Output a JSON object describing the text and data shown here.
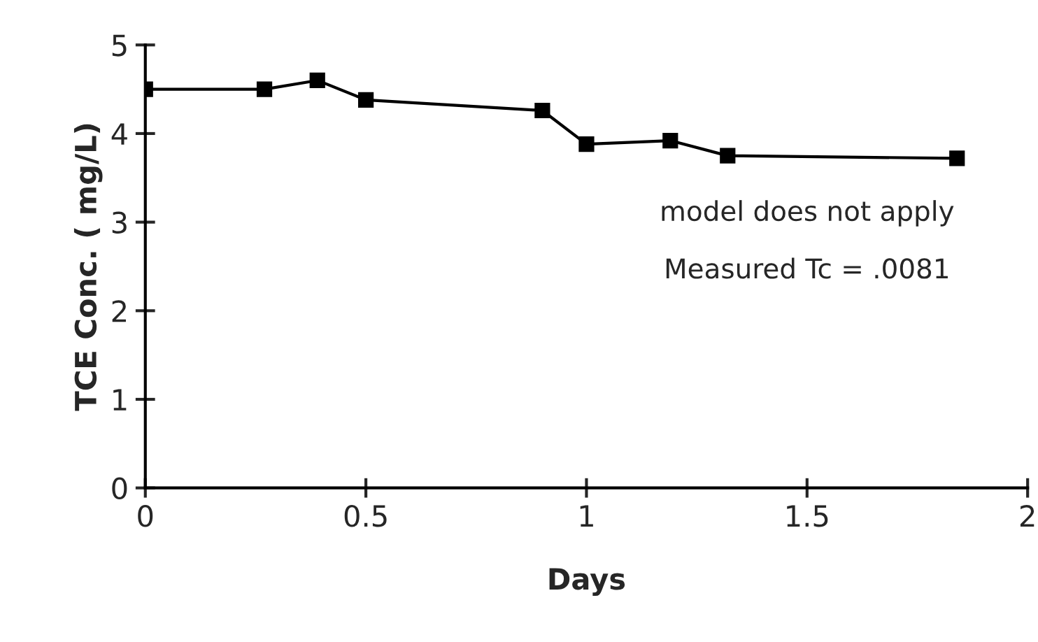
{
  "chart_data": {
    "type": "line",
    "xlabel": "Days",
    "ylabel": "TCE Conc. ( mg/L)",
    "x": [
      0,
      0.27,
      0.39,
      0.5,
      0.9,
      1.0,
      1.19,
      1.32,
      1.84
    ],
    "series": [
      {
        "color": "#000000",
        "values": [
          4.5,
          4.5,
          4.6,
          4.38,
          4.26,
          3.88,
          3.92,
          3.75,
          3.72
        ]
      }
    ],
    "xlim": [
      0,
      2
    ],
    "xticks": [
      0,
      0.5,
      1,
      1.5,
      2
    ],
    "ylim": [
      0,
      5
    ],
    "yticks": [
      0,
      1,
      2,
      3,
      4,
      5
    ],
    "grid": false,
    "legend": false,
    "marker": "square",
    "line_style": "solid",
    "annotations": [
      "model does not apply",
      "Measured Tc = .0081"
    ]
  }
}
